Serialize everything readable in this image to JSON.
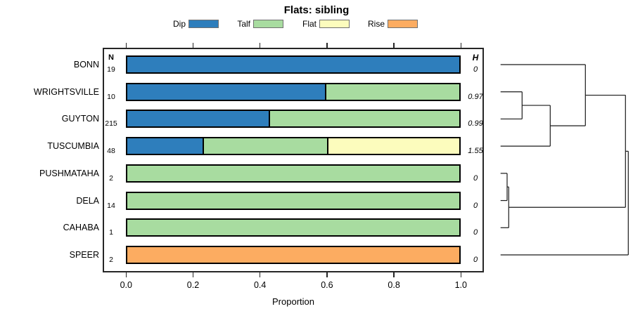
{
  "title": "Flats: sibling",
  "chart_data": {
    "type": "bar",
    "orientation": "horizontal-stacked",
    "title": "Flats: sibling",
    "xlabel": "Proportion",
    "xlim": [
      0,
      1
    ],
    "xtick_labels": [
      "0.0",
      "0.2",
      "0.4",
      "0.6",
      "0.8",
      "1.0"
    ],
    "legend_position": "top",
    "grid": false,
    "categories": [
      "BONN",
      "WRIGHTSVILLE",
      "GUYTON",
      "TUSCUMBIA",
      "PUSHMATAHA",
      "DELA",
      "CAHABA",
      "SPEER"
    ],
    "n_header": "N",
    "h_header": "H",
    "n_values": [
      "19",
      "10",
      "215",
      "48",
      "2",
      "14",
      "1",
      "2"
    ],
    "h_values": [
      "0",
      "0.97",
      "0.99",
      "1.55",
      "0",
      "0",
      "0",
      "0"
    ],
    "series": [
      {
        "name": "Dip",
        "color": "#2E7EBC",
        "values": [
          1.0,
          0.6,
          0.43,
          0.23,
          0,
          0,
          0,
          0
        ]
      },
      {
        "name": "Talf",
        "color": "#A8DCA0",
        "values": [
          0,
          0.4,
          0.57,
          0.375,
          1.0,
          1.0,
          1.0,
          0
        ]
      },
      {
        "name": "Flat",
        "color": "#FCFCBD",
        "values": [
          0,
          0,
          0,
          0.395,
          0,
          0,
          0,
          0
        ]
      },
      {
        "name": "Rise",
        "color": "#FCAC61",
        "values": [
          0,
          0,
          0,
          0,
          0,
          0,
          0,
          1.0
        ]
      }
    ],
    "dendrogram": {
      "note": "join values are merge heights in px right of leaf baseline",
      "tree": {
        "join": 181.6,
        "children": [
          {
            "join": 177.6,
            "children": [
              {
                "join": 120.6,
                "children": [
                  {
                    "leaf": "BONN",
                    "row": 0
                  },
                  {
                    "join": 70.6,
                    "children": [
                      {
                        "join": 30.6,
                        "children": [
                          {
                            "leaf": "WRIGHTSVILLE",
                            "row": 1
                          },
                          {
                            "leaf": "GUYTON",
                            "row": 2
                          }
                        ]
                      },
                      {
                        "leaf": "TUSCUMBIA",
                        "row": 3
                      }
                    ]
                  }
                ]
              },
              {
                "join": 11.6,
                "children": [
                  {
                    "join": 9.3,
                    "children": [
                      {
                        "leaf": "PUSHMATAHA",
                        "row": 4
                      },
                      {
                        "leaf": "DELA",
                        "row": 5
                      }
                    ]
                  },
                  {
                    "leaf": "CAHABA",
                    "row": 6
                  }
                ]
              }
            ]
          },
          {
            "leaf": "SPEER",
            "row": 7
          }
        ]
      }
    }
  }
}
